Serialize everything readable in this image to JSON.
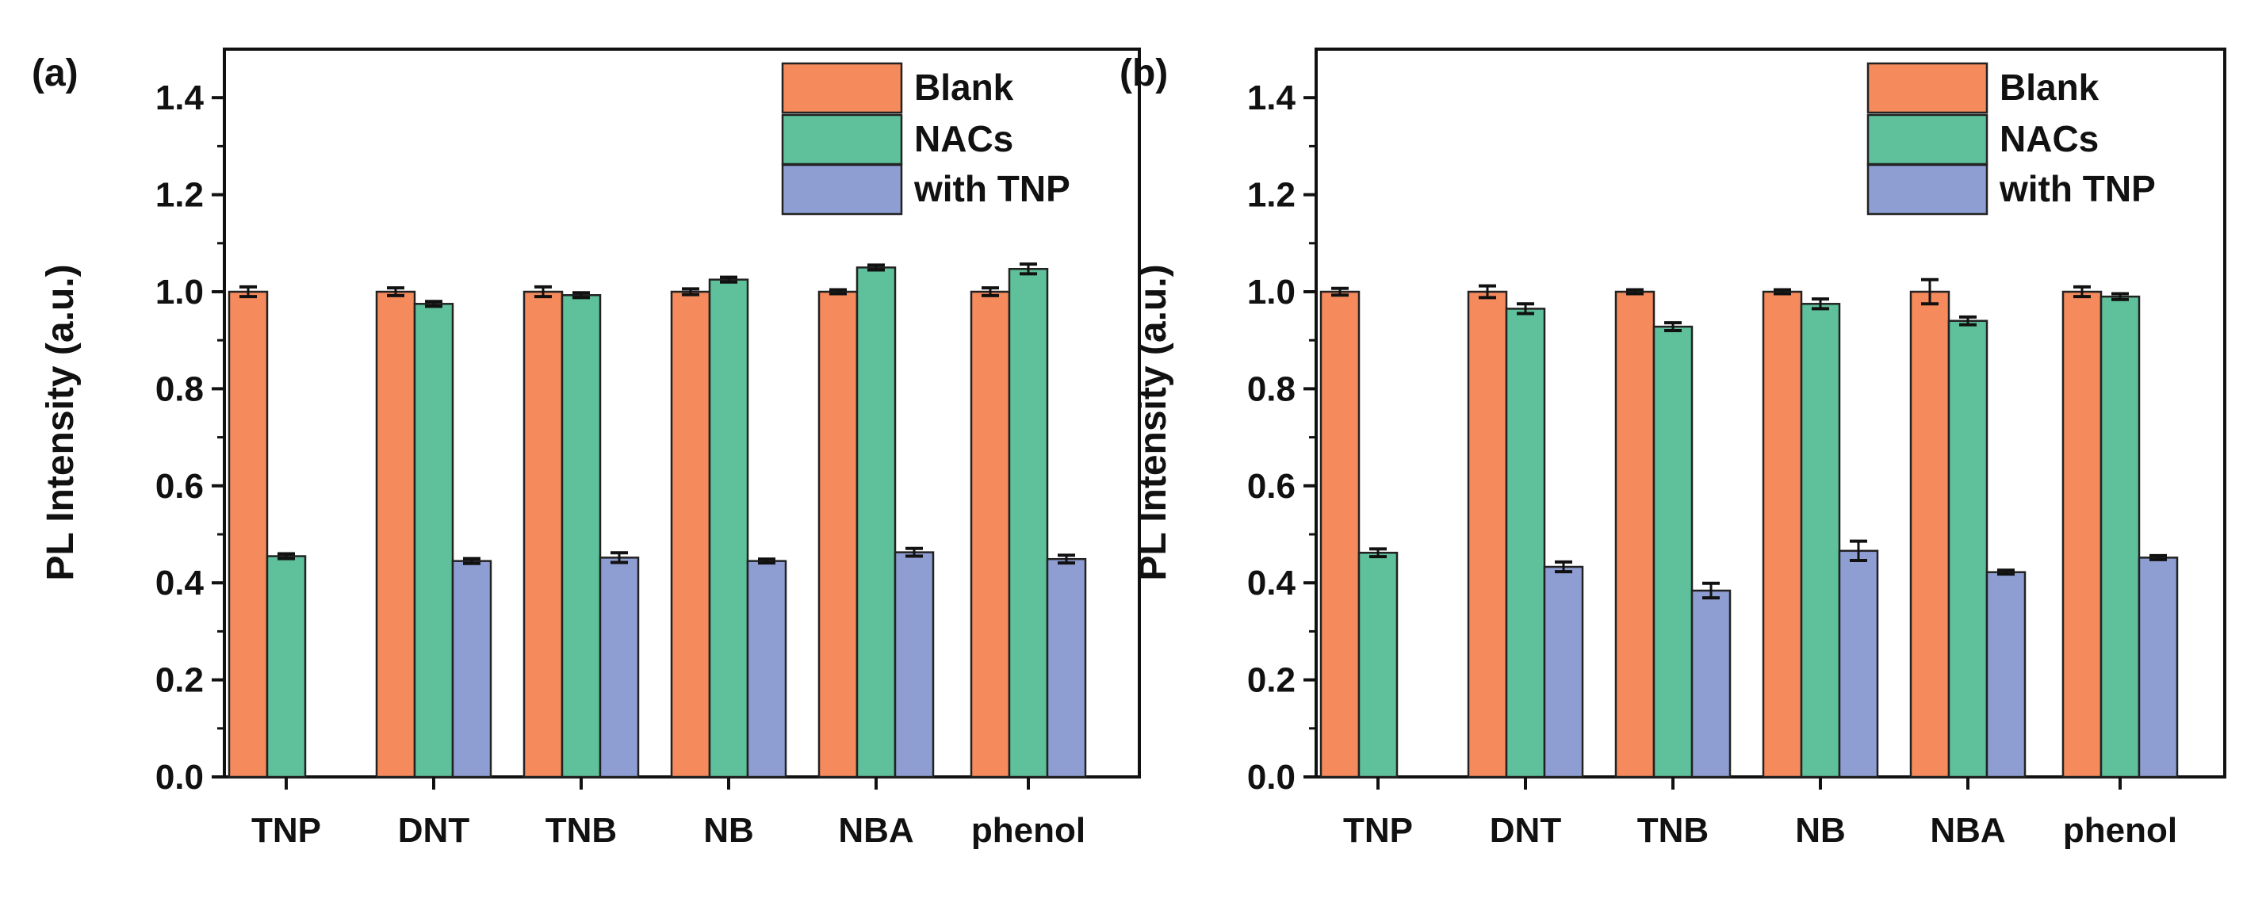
{
  "chart_data": [
    {
      "type": "bar",
      "panel_label": "(a)",
      "categories": [
        "TNP",
        "DNT",
        "TNB",
        "NB",
        "NBA",
        "phenol"
      ],
      "ylabel": "PL Intensity (a.u.)",
      "xlabel": "",
      "ylim": [
        0.0,
        1.5
      ],
      "yticks": [
        "0.0",
        "0.2",
        "0.4",
        "0.6",
        "0.8",
        "1.0",
        "1.2",
        "1.4"
      ],
      "legend_position": "top-right",
      "series": [
        {
          "name": "Blank",
          "color": "#f58a5c",
          "values": [
            1.0,
            1.0,
            1.0,
            1.0,
            1.0,
            1.0
          ],
          "errors": [
            0.01,
            0.008,
            0.01,
            0.006,
            0.004,
            0.008
          ]
        },
        {
          "name": "NACs",
          "color": "#5ec19b",
          "values": [
            0.455,
            0.975,
            0.993,
            1.025,
            1.05,
            1.047
          ],
          "errors": [
            0.005,
            0.005,
            0.005,
            0.005,
            0.005,
            0.01
          ]
        },
        {
          "name": "with TNP",
          "color": "#8e9ed3",
          "values": [
            null,
            0.445,
            0.452,
            0.445,
            0.463,
            0.449
          ],
          "errors": [
            null,
            0.005,
            0.01,
            0.004,
            0.008,
            0.008
          ]
        }
      ]
    },
    {
      "type": "bar",
      "panel_label": "(b)",
      "categories": [
        "TNP",
        "DNT",
        "TNB",
        "NB",
        "NBA",
        "phenol"
      ],
      "ylabel": "PL Intensity (a.u.)",
      "xlabel": "",
      "ylim": [
        0.0,
        1.5
      ],
      "yticks": [
        "0.0",
        "0.2",
        "0.4",
        "0.6",
        "0.8",
        "1.0",
        "1.2",
        "1.4"
      ],
      "legend_position": "top-right",
      "series": [
        {
          "name": "Blank",
          "color": "#f58a5c",
          "values": [
            1.0,
            1.0,
            1.0,
            1.0,
            1.0,
            1.0
          ],
          "errors": [
            0.007,
            0.012,
            0.004,
            0.004,
            0.025,
            0.01
          ]
        },
        {
          "name": "NACs",
          "color": "#5ec19b",
          "values": [
            0.462,
            0.965,
            0.928,
            0.975,
            0.94,
            0.99
          ],
          "errors": [
            0.008,
            0.01,
            0.008,
            0.01,
            0.008,
            0.006
          ]
        },
        {
          "name": "with TNP",
          "color": "#8e9ed3",
          "values": [
            null,
            0.433,
            0.384,
            0.466,
            0.422,
            0.452
          ],
          "errors": [
            null,
            0.01,
            0.015,
            0.02,
            0.004,
            0.004
          ]
        }
      ]
    }
  ]
}
